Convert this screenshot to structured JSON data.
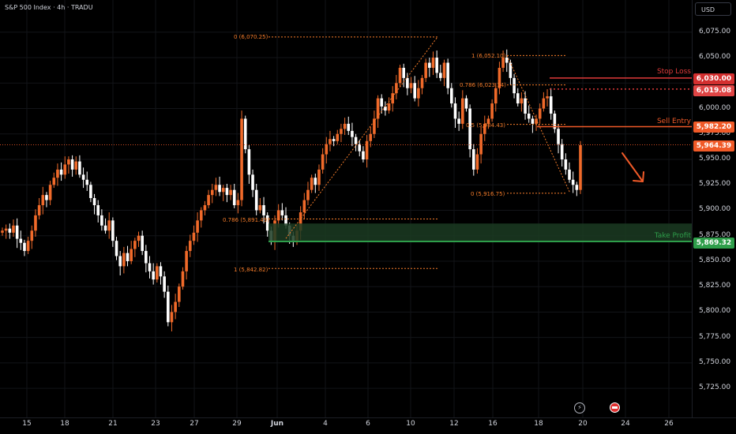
{
  "header": {
    "symbol_info": "S&P 500 Index · 4h · TRADU",
    "currency_button": "USD"
  },
  "price_axis": {
    "ticks": [
      "6,075.00",
      "6,050.00",
      "6,025.00",
      "6,000.00",
      "5,975.00",
      "5,950.00",
      "5,925.00",
      "5,900.00",
      "5,875.00",
      "5,850.00",
      "5,825.00",
      "5,800.00",
      "5,775.00",
      "5,750.00",
      "5,725.00"
    ]
  },
  "time_axis": {
    "ticks": [
      "15",
      "18",
      "21",
      "23",
      "27",
      "29",
      "Jun",
      "4",
      "6",
      "10",
      "12",
      "16",
      "18",
      "20",
      "24",
      "26"
    ]
  },
  "levels": {
    "stop_loss": {
      "label": "Stop Loss",
      "price": "6,030.00",
      "color": "#e03a3a"
    },
    "resistance": {
      "price": "6,019.08",
      "color": "#e03a3a"
    },
    "sell_entry": {
      "label": "Sell Entry",
      "price": "5,982.20",
      "color": "#f05a28"
    },
    "current": {
      "price": "5,964.39",
      "color": "#f05a28"
    },
    "take_profit": {
      "label": "Take Profit",
      "price": "5,869.32",
      "color": "#2e9e4a"
    }
  },
  "fib_left": {
    "top": "0 (6,070.25)",
    "mid": "0.786 (5,891.49)",
    "bottom": "1 (5,842.82)"
  },
  "fib_right": {
    "top": "1 (6,052.10)",
    "upper": "0.786 (6,023.14)",
    "mid": "0.5 (5,984.43)",
    "bottom": "0 (5,916.75)"
  },
  "colors": {
    "up": "#f06a2a",
    "down": "#ffffff",
    "bg": "#000000",
    "grid": "#121418"
  },
  "icons": [
    "lightning-icon",
    "flag-icon"
  ]
}
